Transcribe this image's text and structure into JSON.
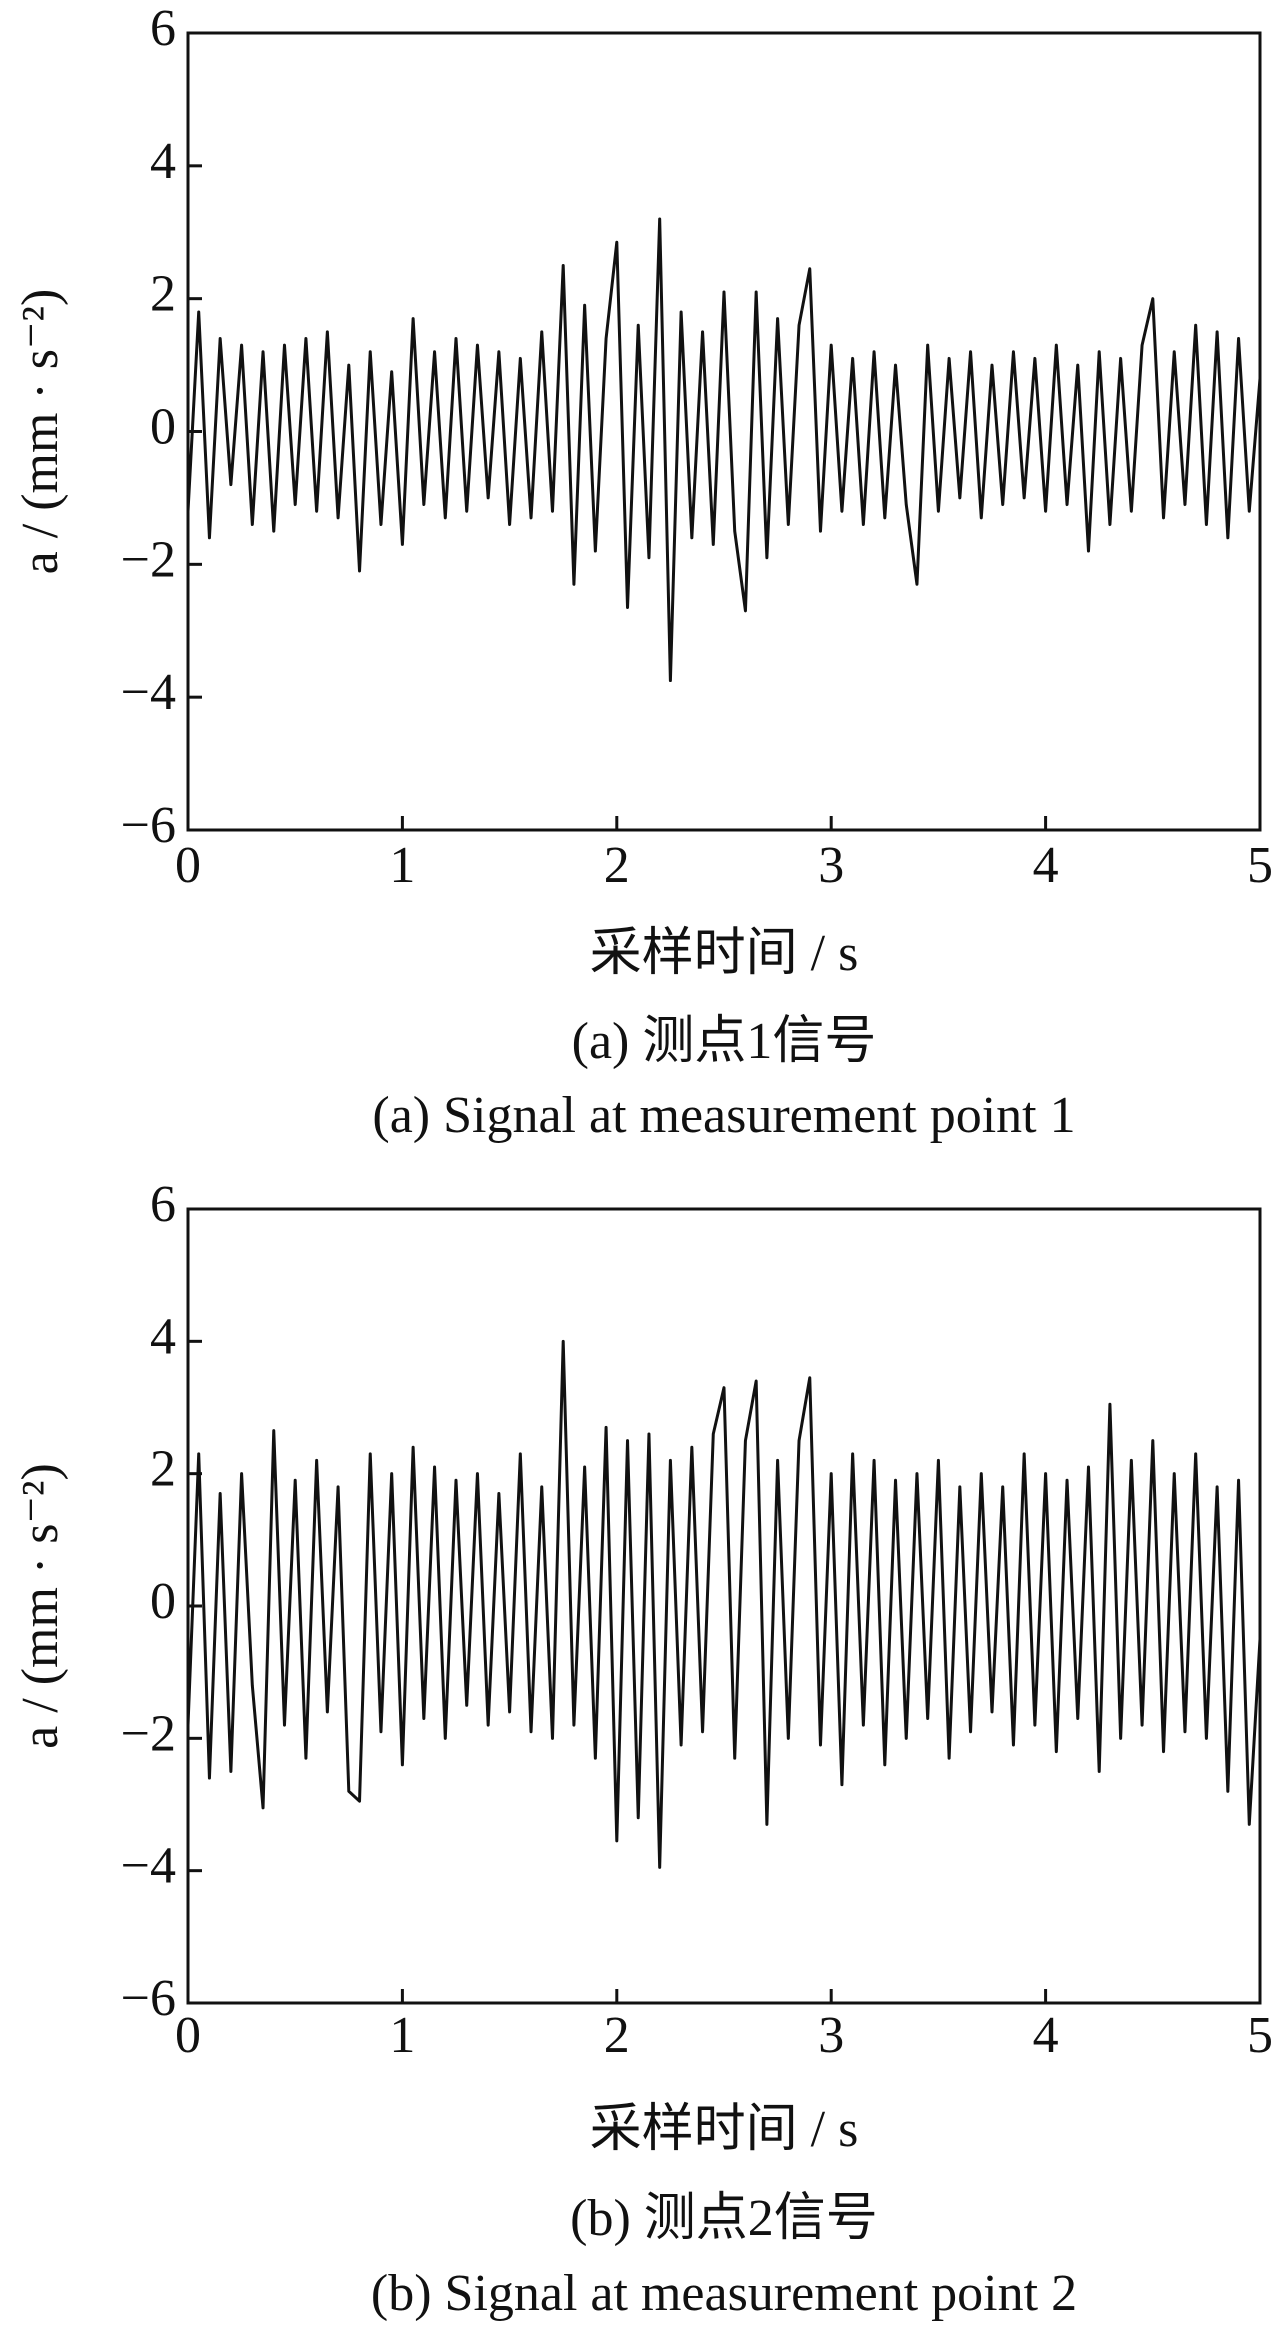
{
  "chart_data": [
    {
      "type": "line",
      "xlabel": "采样时间 / s",
      "ylabel": "a / (mm · s⁻²)",
      "caption_zh": "(a)  测点1信号",
      "caption_en": "(a)  Signal at measurement point 1",
      "color": "#111111",
      "x": [
        0,
        0.05,
        0.1,
        0.15,
        0.2,
        0.25,
        0.3,
        0.35,
        0.4,
        0.45,
        0.5,
        0.55,
        0.6,
        0.65,
        0.7,
        0.75,
        0.8,
        0.85,
        0.9,
        0.95,
        1,
        1.05,
        1.1,
        1.15,
        1.2,
        1.25,
        1.3,
        1.35,
        1.4,
        1.45,
        1.5,
        1.55,
        1.6,
        1.65,
        1.7,
        1.75,
        1.8,
        1.85,
        1.9,
        1.95,
        2,
        2.05,
        2.1,
        2.15,
        2.2,
        2.25,
        2.3,
        2.35,
        2.4,
        2.45,
        2.5,
        2.55,
        2.6,
        2.65,
        2.7,
        2.75,
        2.8,
        2.85,
        2.9,
        2.95,
        3,
        3.05,
        3.1,
        3.15,
        3.2,
        3.25,
        3.3,
        3.35,
        3.4,
        3.45,
        3.5,
        3.55,
        3.6,
        3.65,
        3.7,
        3.75,
        3.8,
        3.85,
        3.9,
        3.95,
        4,
        4.05,
        4.1,
        4.15,
        4.2,
        4.25,
        4.3,
        4.35,
        4.4,
        4.45,
        4.5,
        4.55,
        4.6,
        4.65,
        4.7,
        4.75,
        4.8,
        4.85,
        4.9,
        4.95,
        5
      ],
      "values": [
        -1.2,
        1.8,
        -1.6,
        1.4,
        -0.8,
        1.3,
        -1.4,
        1.2,
        -1.5,
        1.3,
        -1.1,
        1.4,
        -1.2,
        1.5,
        -1.3,
        1.0,
        -2.1,
        1.2,
        -1.4,
        0.9,
        -1.7,
        1.7,
        -1.1,
        1.2,
        -1.3,
        1.4,
        -1.2,
        1.3,
        -1.0,
        1.2,
        -1.4,
        1.1,
        -1.3,
        1.5,
        -1.2,
        2.5,
        -2.3,
        1.9,
        -1.8,
        1.4,
        2.85,
        -2.65,
        1.6,
        -1.9,
        3.2,
        -3.75,
        1.8,
        -1.6,
        1.5,
        -1.7,
        2.1,
        -1.5,
        -2.7,
        2.1,
        -1.9,
        1.7,
        -1.4,
        1.6,
        2.45,
        -1.5,
        1.3,
        -1.2,
        1.1,
        -1.4,
        1.2,
        -1.3,
        1.0,
        -1.1,
        -2.3,
        1.3,
        -1.2,
        1.1,
        -1.0,
        1.2,
        -1.3,
        1.0,
        -1.1,
        1.2,
        -1.0,
        1.1,
        -1.2,
        1.3,
        -1.1,
        1.0,
        -1.8,
        1.2,
        -1.4,
        1.1,
        -1.2,
        1.3,
        2.0,
        -1.3,
        1.2,
        -1.1,
        1.6,
        -1.4,
        1.5,
        -1.6,
        1.4,
        -1.2,
        0.8
      ],
      "xlim": [
        0,
        5
      ],
      "xticks": [
        0,
        1,
        2,
        3,
        4,
        5
      ],
      "ylim": [
        -6,
        6
      ],
      "yticks": [
        {
          "value": -6,
          "label": "−6"
        },
        {
          "value": -4,
          "label": "−4"
        },
        {
          "value": -2,
          "label": "−2"
        },
        0,
        2,
        4,
        6
      ]
    },
    {
      "type": "line",
      "xlabel": "采样时间 / s",
      "ylabel": "a / (mm · s⁻²)",
      "caption_zh": "(b)  测点2信号",
      "caption_en": "(b)  Signal at measurement point 2",
      "color": "#111111",
      "x": [
        0,
        0.05,
        0.1,
        0.15,
        0.2,
        0.25,
        0.3,
        0.35,
        0.4,
        0.45,
        0.5,
        0.55,
        0.6,
        0.65,
        0.7,
        0.75,
        0.8,
        0.85,
        0.9,
        0.95,
        1,
        1.05,
        1.1,
        1.15,
        1.2,
        1.25,
        1.3,
        1.35,
        1.4,
        1.45,
        1.5,
        1.55,
        1.6,
        1.65,
        1.7,
        1.75,
        1.8,
        1.85,
        1.9,
        1.95,
        2,
        2.05,
        2.1,
        2.15,
        2.2,
        2.25,
        2.3,
        2.35,
        2.4,
        2.45,
        2.5,
        2.55,
        2.6,
        2.65,
        2.7,
        2.75,
        2.8,
        2.85,
        2.9,
        2.95,
        3,
        3.05,
        3.1,
        3.15,
        3.2,
        3.25,
        3.3,
        3.35,
        3.4,
        3.45,
        3.5,
        3.55,
        3.6,
        3.65,
        3.7,
        3.75,
        3.8,
        3.85,
        3.9,
        3.95,
        4,
        4.05,
        4.1,
        4.15,
        4.2,
        4.25,
        4.3,
        4.35,
        4.4,
        4.45,
        4.5,
        4.55,
        4.6,
        4.65,
        4.7,
        4.75,
        4.8,
        4.85,
        4.9,
        4.95,
        5
      ],
      "values": [
        -1.8,
        2.3,
        -2.6,
        1.7,
        -2.5,
        2.0,
        -1.2,
        -3.05,
        2.65,
        -1.8,
        1.9,
        -2.3,
        2.2,
        -1.6,
        1.8,
        -2.8,
        -2.95,
        2.3,
        -1.9,
        2.0,
        -2.4,
        2.4,
        -1.7,
        2.1,
        -2.0,
        1.9,
        -1.5,
        2.0,
        -1.8,
        1.7,
        -1.6,
        2.3,
        -1.9,
        1.8,
        -2.0,
        4.0,
        -1.8,
        2.1,
        -2.3,
        2.7,
        -3.55,
        2.5,
        -3.2,
        2.6,
        -3.95,
        2.2,
        -2.1,
        2.4,
        -1.9,
        2.6,
        3.3,
        -2.3,
        2.5,
        3.4,
        -3.3,
        2.2,
        -2.0,
        2.5,
        3.45,
        -2.1,
        2.0,
        -2.7,
        2.3,
        -1.8,
        2.2,
        -2.4,
        1.9,
        -2.0,
        2.0,
        -1.7,
        2.2,
        -2.3,
        1.8,
        -1.9,
        2.0,
        -1.6,
        1.8,
        -2.1,
        2.3,
        -1.8,
        2.0,
        -2.2,
        1.9,
        -1.7,
        2.1,
        -2.5,
        3.05,
        -2.0,
        2.2,
        -1.8,
        2.5,
        -2.2,
        2.0,
        -1.9,
        2.3,
        -2.0,
        1.8,
        -2.8,
        1.9,
        -3.3,
        -0.5
      ],
      "xlim": [
        0,
        5
      ],
      "xticks": [
        0,
        1,
        2,
        3,
        4,
        5
      ],
      "ylim": [
        -6,
        6
      ],
      "yticks": [
        {
          "value": -6,
          "label": "−6"
        },
        {
          "value": -4,
          "label": "−4"
        },
        {
          "value": -2,
          "label": "−2"
        },
        0,
        2,
        4,
        6
      ]
    }
  ]
}
